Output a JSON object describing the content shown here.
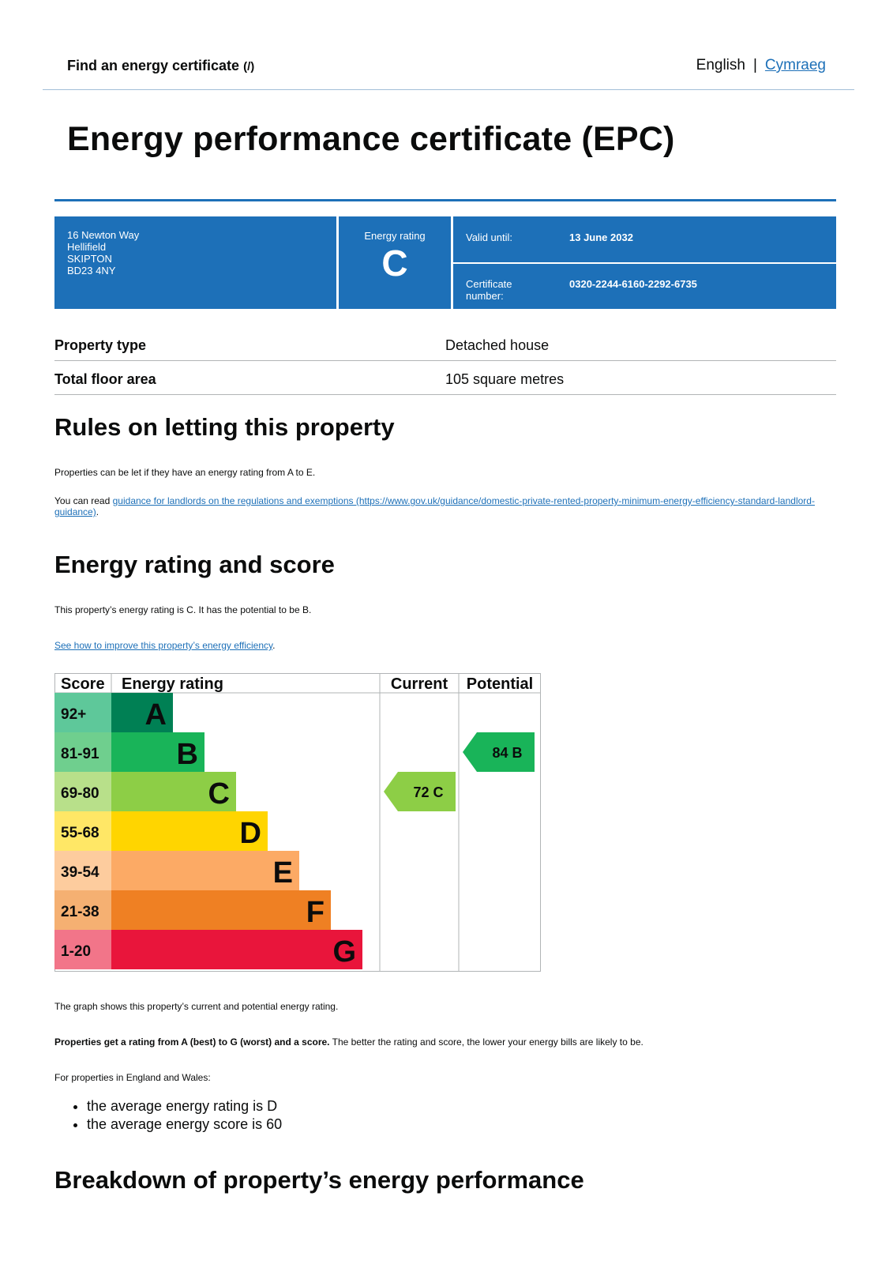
{
  "header": {
    "service_name": "Find an energy certificate",
    "service_suffix": "(/)",
    "lang_current": "English",
    "lang_separator": "|",
    "lang_other": "Cymraeg"
  },
  "page_title": "Energy performance certificate (EPC)",
  "summary": {
    "address_lines": [
      "16 Newton Way",
      "Hellifield",
      "SKIPTON",
      "BD23 4NY"
    ],
    "energy_rating_label": "Energy rating",
    "energy_rating": "C",
    "valid_until_label": "Valid until:",
    "valid_until": "13 June 2032",
    "certificate_label_line1": "Certificate",
    "certificate_label_line2": "number:",
    "certificate_number": "0320-2244-6160-2292-6735"
  },
  "property": {
    "rows": [
      {
        "label": "Property type",
        "value": "Detached house"
      },
      {
        "label": "Total floor area",
        "value": "105 square metres"
      }
    ]
  },
  "letting": {
    "heading": "Rules on letting this property",
    "p1": "Properties can be let if they have an energy rating from A to E.",
    "p2_prefix": "You can read ",
    "p2_link": "guidance for landlords on the regulations and exemptions (https://www.gov.uk/guidance/domestic-private-rented-property-minimum-energy-efficiency-standard-landlord-guidance)",
    "p2_suffix": "."
  },
  "score_section": {
    "heading": "Energy rating and score",
    "p1": "This property’s energy rating is C. It has the potential to be B.",
    "improve_link": "See how to improve this property’s energy efficiency",
    "improve_suffix": ".",
    "graph_note": "The graph shows this property’s current and potential energy rating.",
    "ratings_bold": "Properties get a rating from A (best) to G (worst) and a score.",
    "ratings_rest": " The better the rating and score, the lower your energy bills are likely to be.",
    "avg_intro": "For properties in England and Wales:",
    "avg_items": [
      "the average energy rating is D",
      "the average energy score is 60"
    ]
  },
  "chart_data": {
    "type": "bar",
    "headers": {
      "score": "Score",
      "rating": "Energy rating",
      "current": "Current",
      "potential": "Potential"
    },
    "bands": [
      {
        "score": "92+",
        "letter": "A",
        "color": "#008054",
        "score_bg": "#5ec89a"
      },
      {
        "score": "81-91",
        "letter": "B",
        "color": "#19b459",
        "score_bg": "#6fcf8e"
      },
      {
        "score": "69-80",
        "letter": "C",
        "color": "#8dce46",
        "score_bg": "#b8e08a"
      },
      {
        "score": "55-68",
        "letter": "D",
        "color": "#ffd500",
        "score_bg": "#ffe766"
      },
      {
        "score": "39-54",
        "letter": "E",
        "color": "#fcaa65",
        "score_bg": "#fdcc9e"
      },
      {
        "score": "21-38",
        "letter": "F",
        "color": "#ef8023",
        "score_bg": "#f5b072"
      },
      {
        "score": "1-20",
        "letter": "G",
        "color": "#e9153b",
        "score_bg": "#f27589"
      }
    ],
    "current": {
      "score": 72,
      "letter": "C",
      "color": "#8dce46"
    },
    "potential": {
      "score": 84,
      "letter": "B",
      "color": "#19b459"
    }
  },
  "breakdown": {
    "heading": "Breakdown of property’s energy performance"
  }
}
